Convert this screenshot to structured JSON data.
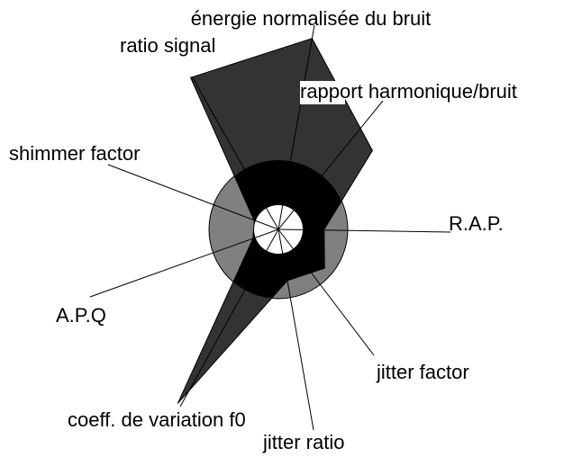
{
  "chart_data": {
    "type": "radar",
    "categories": [
      "R.A.P.",
      "rapport harmonique/bruit",
      "énergie normalisée du bruit",
      "ratio signal",
      "shimmer factor",
      "A.P.Q",
      "coeff. de variation f0",
      "jitter ratio",
      "jitter factor"
    ],
    "values": [
      0.66,
      1.77,
      2.8,
      2.53,
      0.37,
      0.39,
      2.9,
      0.75,
      0.87
    ],
    "color": "#333333"
  }
}
